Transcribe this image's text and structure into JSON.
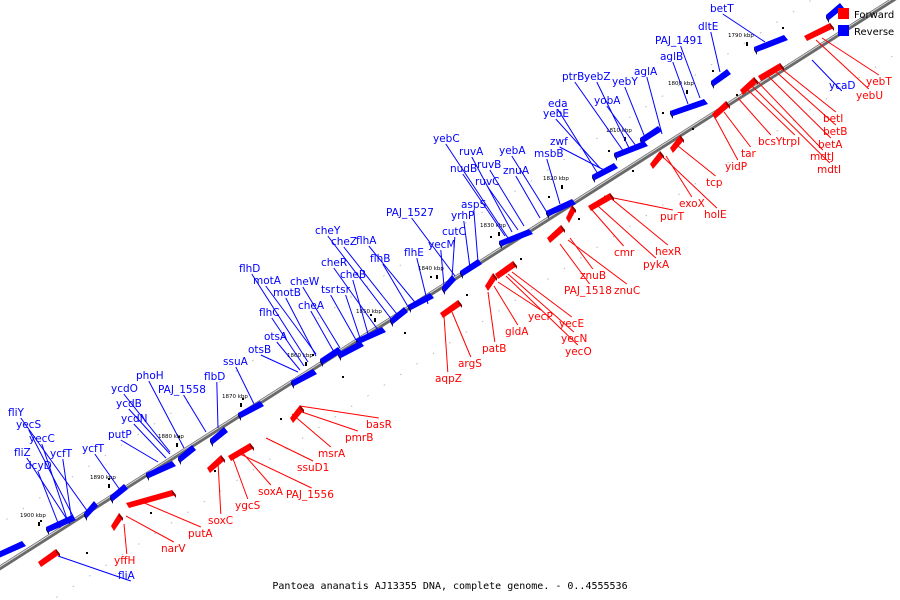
{
  "legend": {
    "forward": {
      "label": "Forward",
      "color": "#ff0000"
    },
    "reverse": {
      "label": "Reverse",
      "color": "#0000ff"
    }
  },
  "caption": "Pantoea ananatis AJ13355 DNA, complete genome. - 0..4555536",
  "ticks": [
    {
      "label": "1790 kbp"
    },
    {
      "label": "1800 kbp"
    },
    {
      "label": "1810 kbp"
    },
    {
      "label": "1820 kbp"
    },
    {
      "label": "1830 kbp"
    },
    {
      "label": "1840 kbp"
    },
    {
      "label": "1850 kbp"
    },
    {
      "label": "1860 kbp"
    },
    {
      "label": "1870 kbp"
    },
    {
      "label": "1880 kbp"
    },
    {
      "label": "1890 kbp"
    },
    {
      "label": "1900 kbp"
    }
  ],
  "reverse_genes": [
    "betT",
    "dltE",
    "PAJ_1491",
    "aglB",
    "aglA",
    "yebY",
    "yobA",
    "yebZ",
    "ptrB",
    "yebE",
    "eda",
    "zwf",
    "msbB",
    "yebA",
    "znuA",
    "ruvB",
    "ruvC",
    "ruvA",
    "nudB",
    "yebC",
    "aspS",
    "yrhP",
    "PAJ_1527",
    "cutC",
    "yecM",
    "flhE",
    "flhA",
    "flhB",
    "cheZ",
    "cheY",
    "cheR",
    "cheB",
    "tsr",
    "tsr",
    "cheW",
    "cheA",
    "motA",
    "motB",
    "flhD",
    "flhC",
    "otsA",
    "otsB",
    "ssuA",
    "flbD",
    "PAJ_1558",
    "phoH",
    "ycdO",
    "ycdB",
    "ycdN",
    "putP",
    "ycfT",
    "fliY",
    "yecS",
    "yecC",
    "fliZ",
    "dcyD",
    "ycfT",
    "ycaD",
    "fliA"
  ],
  "forward_genes": [
    "yebT",
    "yebU",
    "betI",
    "betB",
    "betA",
    "mdtJ",
    "mdtI",
    "trpI",
    "bcsY",
    "tar",
    "yidP",
    "tcp",
    "exoX",
    "holE",
    "purT",
    "hexR",
    "pykA",
    "cmr",
    "znuB",
    "znuC",
    "PAJ_1518",
    "yecE",
    "yecN",
    "yecO",
    "yecP",
    "gldA",
    "patB",
    "argS",
    "aqpZ",
    "basR",
    "pmrB",
    "msrA",
    "ssuD1",
    "soxA",
    "PAJ_1556",
    "ygcS",
    "soxC",
    "putA",
    "narV",
    "yffH"
  ]
}
